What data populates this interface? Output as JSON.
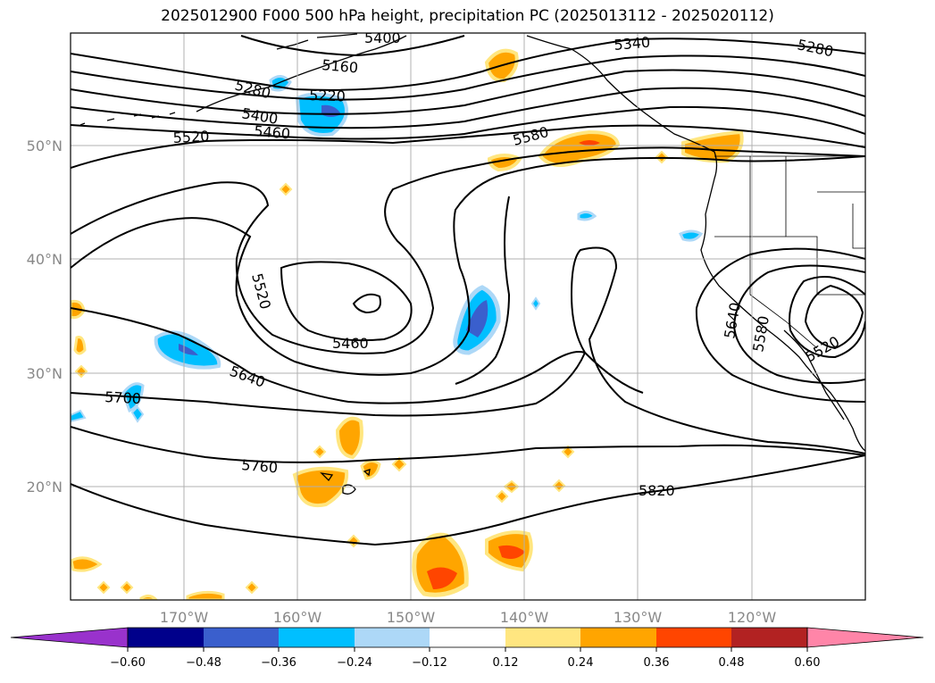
{
  "title": "2025012900 F000 500 hPa height, precipitation PC (2025013112 - 2025020112)",
  "lat_labels": [
    "50°N",
    "40°N",
    "30°N",
    "20°N"
  ],
  "lon_labels": [
    "170°W",
    "160°W",
    "150°W",
    "140°W",
    "130°W",
    "120°W"
  ],
  "contour_labels": [
    "5280",
    "5400",
    "5460",
    "5520",
    "5160",
    "5220",
    "5280",
    "5340",
    "5580",
    "5520",
    "5460",
    "5640",
    "5700",
    "5760",
    "5820",
    "5640",
    "5580",
    "5520",
    "5400"
  ],
  "colorbar": {
    "ticks": [
      "−0.60",
      "−0.48",
      "−0.36",
      "−0.24",
      "−0.12",
      "0.12",
      "0.24",
      "0.36",
      "0.48",
      "0.60"
    ],
    "colors": [
      "#9932cc",
      "#00008b",
      "#3a5fcd",
      "#00bfff",
      "#add8f7",
      "#ffffff",
      "#ffe680",
      "#ffa500",
      "#ff4500",
      "#b22222",
      "#ff85a8"
    ]
  }
}
